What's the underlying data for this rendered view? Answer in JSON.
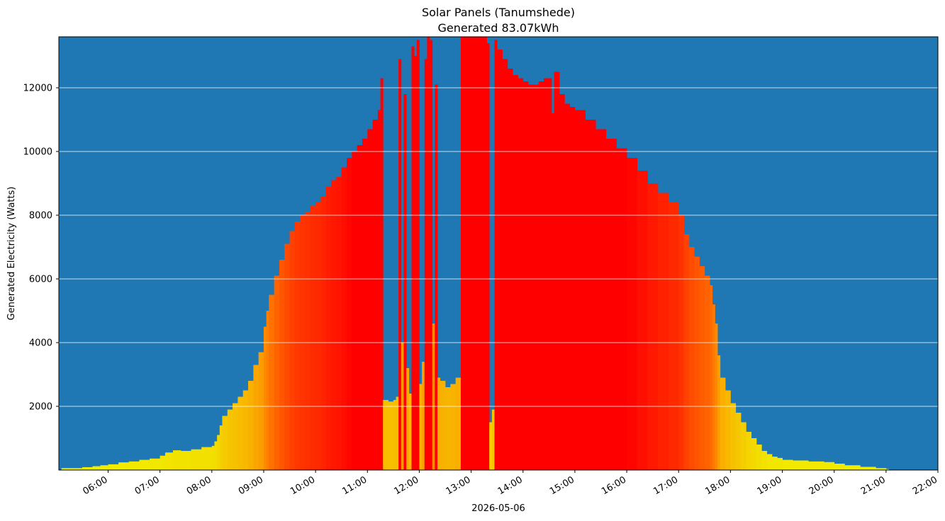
{
  "chart_data": {
    "type": "bar",
    "title": "Solar Panels (Tanumshede)",
    "subtitle": "Generated 83.07kWh",
    "xlabel": "2026-05-06",
    "ylabel": "Generated Electricity (Watts)",
    "x_unit": "hours since 00:00",
    "xlim": [
      5.05,
      22.0
    ],
    "ylim": [
      0,
      13600
    ],
    "grid": {
      "y": true,
      "x": false
    },
    "background_color": "#1f77b4",
    "grid_color": "#ffffff",
    "colormap": {
      "low": "#f0f000",
      "mid": "#ff7f00",
      "high": "#ff0000"
    },
    "x_tick_labels": [
      "06:00",
      "07:00",
      "08:00",
      "09:00",
      "10:00",
      "11:00",
      "12:00",
      "13:00",
      "14:00",
      "15:00",
      "16:00",
      "17:00",
      "18:00",
      "19:00",
      "20:00",
      "21:00",
      "22:00"
    ],
    "x_tick_values": [
      6,
      7,
      8,
      9,
      10,
      11,
      12,
      13,
      14,
      15,
      16,
      17,
      18,
      19,
      20,
      21,
      22
    ],
    "y_tick_labels": [
      "2000",
      "4000",
      "6000",
      "8000",
      "10000",
      "12000"
    ],
    "y_tick_values": [
      2000,
      4000,
      6000,
      8000,
      10000,
      12000
    ],
    "series": [
      {
        "points": [
          [
            5.1,
            60
          ],
          [
            5.5,
            90
          ],
          [
            5.7,
            120
          ],
          [
            5.85,
            150
          ],
          [
            6.0,
            180
          ],
          [
            6.2,
            240
          ],
          [
            6.4,
            270
          ],
          [
            6.6,
            320
          ],
          [
            6.8,
            360
          ],
          [
            7.0,
            450
          ],
          [
            7.1,
            550
          ],
          [
            7.25,
            620
          ],
          [
            7.4,
            600
          ],
          [
            7.6,
            650
          ],
          [
            7.8,
            720
          ],
          [
            8.0,
            760
          ],
          [
            8.05,
            900
          ],
          [
            8.1,
            1100
          ],
          [
            8.15,
            1400
          ],
          [
            8.2,
            1700
          ],
          [
            8.3,
            1900
          ],
          [
            8.4,
            2100
          ],
          [
            8.5,
            2300
          ],
          [
            8.6,
            2500
          ],
          [
            8.7,
            2800
          ],
          [
            8.8,
            3300
          ],
          [
            8.9,
            3700
          ],
          [
            9.0,
            4500
          ],
          [
            9.05,
            5000
          ],
          [
            9.1,
            5500
          ],
          [
            9.2,
            6100
          ],
          [
            9.3,
            6600
          ],
          [
            9.4,
            7100
          ],
          [
            9.5,
            7500
          ],
          [
            9.6,
            7800
          ],
          [
            9.7,
            8000
          ],
          [
            9.8,
            8100
          ],
          [
            9.9,
            8300
          ],
          [
            10.0,
            8400
          ],
          [
            10.1,
            8600
          ],
          [
            10.2,
            8900
          ],
          [
            10.3,
            9100
          ],
          [
            10.4,
            9200
          ],
          [
            10.5,
            9500
          ],
          [
            10.6,
            9800
          ],
          [
            10.7,
            10000
          ],
          [
            10.8,
            10200
          ],
          [
            10.9,
            10400
          ],
          [
            11.0,
            10700
          ],
          [
            11.1,
            11000
          ],
          [
            11.2,
            11300
          ],
          [
            11.25,
            12300
          ],
          [
            11.3,
            2200
          ],
          [
            11.4,
            2150
          ],
          [
            11.5,
            2200
          ],
          [
            11.55,
            2300
          ],
          [
            11.6,
            12900
          ],
          [
            11.65,
            4000
          ],
          [
            11.7,
            11800
          ],
          [
            11.75,
            3200
          ],
          [
            11.8,
            2400
          ],
          [
            11.85,
            13300
          ],
          [
            11.9,
            13000
          ],
          [
            11.95,
            13500
          ],
          [
            12.0,
            2700
          ],
          [
            12.05,
            3400
          ],
          [
            12.1,
            12900
          ],
          [
            12.15,
            13600
          ],
          [
            12.2,
            13500
          ],
          [
            12.25,
            4600
          ],
          [
            12.3,
            12100
          ],
          [
            12.35,
            2900
          ],
          [
            12.4,
            2800
          ],
          [
            12.5,
            2600
          ],
          [
            12.6,
            2700
          ],
          [
            12.7,
            2900
          ],
          [
            12.8,
            13600
          ],
          [
            12.9,
            13600
          ],
          [
            13.0,
            13600
          ],
          [
            13.1,
            13600
          ],
          [
            13.2,
            13600
          ],
          [
            13.3,
            13400
          ],
          [
            13.35,
            1500
          ],
          [
            13.4,
            1900
          ],
          [
            13.45,
            13500
          ],
          [
            13.5,
            13200
          ],
          [
            13.6,
            12900
          ],
          [
            13.7,
            12600
          ],
          [
            13.8,
            12400
          ],
          [
            13.9,
            12300
          ],
          [
            14.0,
            12200
          ],
          [
            14.1,
            12100
          ],
          [
            14.2,
            12100
          ],
          [
            14.3,
            12200
          ],
          [
            14.4,
            12300
          ],
          [
            14.5,
            12300
          ],
          [
            14.55,
            11200
          ],
          [
            14.6,
            12500
          ],
          [
            14.7,
            11800
          ],
          [
            14.8,
            11500
          ],
          [
            14.9,
            11400
          ],
          [
            15.0,
            11300
          ],
          [
            15.2,
            11000
          ],
          [
            15.4,
            10700
          ],
          [
            15.6,
            10400
          ],
          [
            15.8,
            10100
          ],
          [
            16.0,
            9800
          ],
          [
            16.2,
            9400
          ],
          [
            16.4,
            9000
          ],
          [
            16.6,
            8700
          ],
          [
            16.8,
            8400
          ],
          [
            17.0,
            8000
          ],
          [
            17.1,
            7400
          ],
          [
            17.2,
            7000
          ],
          [
            17.3,
            6700
          ],
          [
            17.4,
            6400
          ],
          [
            17.5,
            6100
          ],
          [
            17.6,
            5800
          ],
          [
            17.65,
            5200
          ],
          [
            17.7,
            4600
          ],
          [
            17.75,
            3600
          ],
          [
            17.8,
            2900
          ],
          [
            17.9,
            2500
          ],
          [
            18.0,
            2100
          ],
          [
            18.1,
            1800
          ],
          [
            18.2,
            1500
          ],
          [
            18.3,
            1200
          ],
          [
            18.4,
            1000
          ],
          [
            18.5,
            800
          ],
          [
            18.6,
            600
          ],
          [
            18.7,
            500
          ],
          [
            18.8,
            420
          ],
          [
            18.9,
            380
          ],
          [
            19.0,
            320
          ],
          [
            19.2,
            300
          ],
          [
            19.5,
            270
          ],
          [
            19.8,
            250
          ],
          [
            20.0,
            200
          ],
          [
            20.2,
            150
          ],
          [
            20.5,
            100
          ],
          [
            20.8,
            60
          ],
          [
            21.0,
            30
          ]
        ]
      }
    ]
  }
}
